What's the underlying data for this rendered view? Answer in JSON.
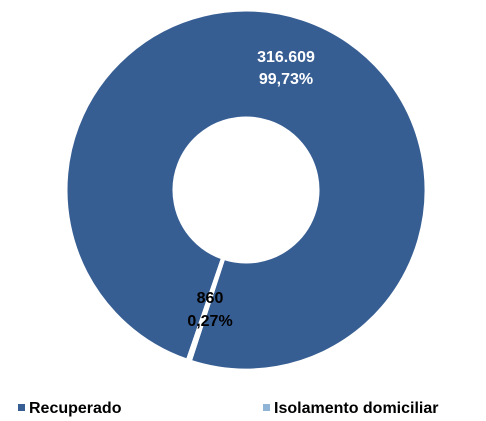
{
  "chart_data": {
    "type": "donut",
    "categories": [
      "Recuperado",
      "Isolamento domiciliar"
    ],
    "values": [
      316609,
      860
    ],
    "value_labels": [
      "316.609",
      "860"
    ],
    "percent_labels": [
      "99,73%",
      "0,27%"
    ],
    "colors": [
      "#375e93",
      "#8fb4d6"
    ]
  }
}
